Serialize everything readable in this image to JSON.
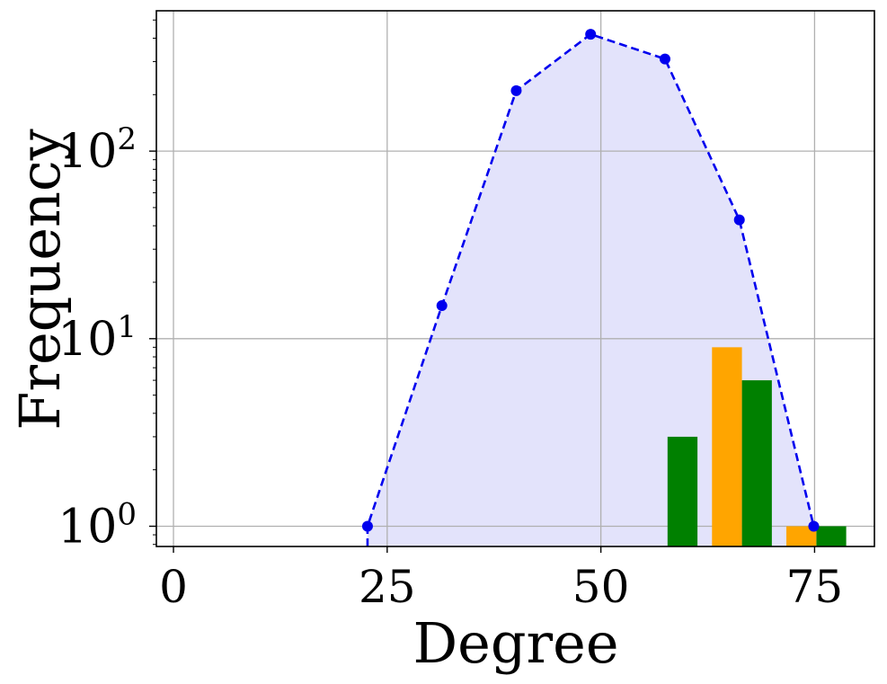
{
  "chart_data": {
    "type": "bar",
    "xlabel": "Degree",
    "ylabel": "Frequency",
    "xlim": [
      -2,
      82
    ],
    "ylim": [
      0.78,
      560
    ],
    "yscale": "log",
    "grid": true,
    "x_ticks": [
      {
        "value": 0,
        "label": "0"
      },
      {
        "value": 25,
        "label": "25"
      },
      {
        "value": 50,
        "label": "50"
      },
      {
        "value": 75,
        "label": "75"
      }
    ],
    "y_ticks": [
      {
        "value": 1,
        "base": "10",
        "exp": "0"
      },
      {
        "value": 10,
        "base": "10",
        "exp": "1"
      },
      {
        "value": 100,
        "base": "10",
        "exp": "2"
      }
    ],
    "series": [
      {
        "type": "area-line",
        "color": "#0000ee",
        "fill": "#e3e3fb",
        "style": "dashed",
        "points": [
          {
            "x": 22.7,
            "y": 1
          },
          {
            "x": 31.4,
            "y": 15
          },
          {
            "x": 40.1,
            "y": 210
          },
          {
            "x": 48.8,
            "y": 420
          },
          {
            "x": 57.5,
            "y": 310
          },
          {
            "x": 66.2,
            "y": 43
          },
          {
            "x": 74.9,
            "y": 1
          }
        ]
      },
      {
        "type": "bar",
        "color": "#008000",
        "bars": [
          {
            "x0": 57.8,
            "x1": 61.3,
            "y": 3
          },
          {
            "x0": 66.5,
            "x1": 70.0,
            "y": 6
          },
          {
            "x0": 75.2,
            "x1": 78.7,
            "y": 1
          }
        ]
      },
      {
        "type": "bar",
        "color": "#ffa500",
        "bars": [
          {
            "x0": 63.0,
            "x1": 66.5,
            "y": 9
          },
          {
            "x0": 71.7,
            "x1": 75.2,
            "y": 1
          }
        ]
      }
    ]
  }
}
